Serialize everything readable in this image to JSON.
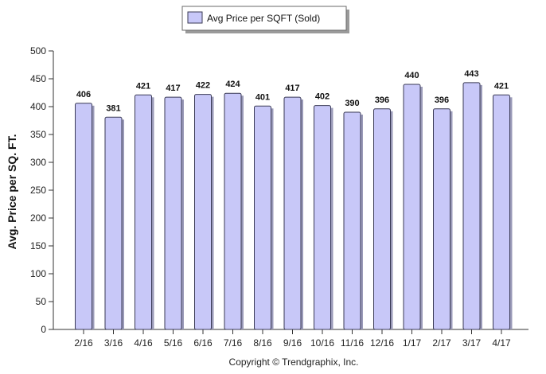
{
  "chart_data": {
    "type": "bar",
    "categories": [
      "2/16",
      "3/16",
      "4/16",
      "5/16",
      "6/16",
      "7/16",
      "8/16",
      "9/16",
      "10/16",
      "11/16",
      "12/16",
      "1/17",
      "2/17",
      "3/17",
      "4/17"
    ],
    "series": [
      {
        "name": "Avg Price per SQFT (Sold)",
        "values": [
          406,
          381,
          421,
          417,
          422,
          424,
          401,
          417,
          402,
          390,
          396,
          440,
          396,
          443,
          421
        ],
        "color": "#c8c8f8",
        "stroke": "#3a3a55"
      }
    ],
    "data_labels": [
      "406",
      "381",
      "421",
      "417",
      "422",
      "424",
      "401",
      "417",
      "402",
      "390",
      "396",
      "440",
      "396",
      "443",
      "421"
    ],
    "ylabel": "Avg. Price per SQ. FT.",
    "ylim": [
      0,
      500
    ],
    "yticks": [
      "0",
      "50",
      "100",
      "150",
      "200",
      "250",
      "300",
      "350",
      "400",
      "450",
      "500"
    ],
    "grid": false,
    "legend_position": "top-center"
  },
  "credit": "Copyright © Trendgraphix, Inc."
}
